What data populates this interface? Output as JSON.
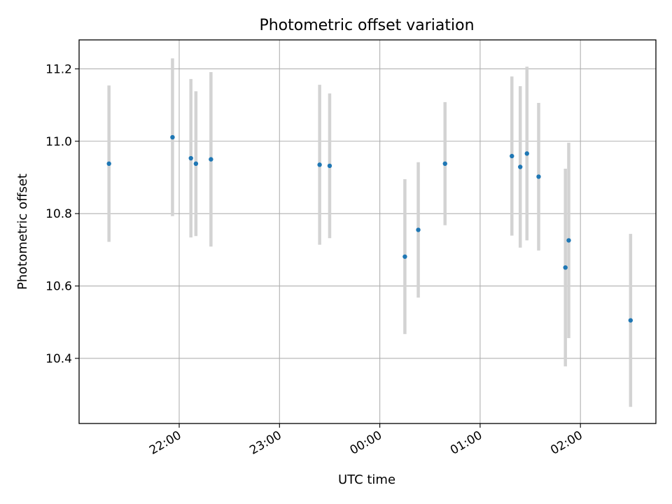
{
  "chart_data": {
    "type": "scatter",
    "title": "Photometric offset variation",
    "xlabel": "UTC time",
    "ylabel": "Photometric offset",
    "x_ticks": [
      "22:00",
      "23:00",
      "00:00",
      "01:00",
      "02:00"
    ],
    "y_ticks": [
      "10.4",
      "10.6",
      "10.8",
      "11.0",
      "11.2"
    ],
    "y_tick_values": [
      10.4,
      10.6,
      10.8,
      11.0,
      11.2
    ],
    "ylim": [
      10.22,
      11.28
    ],
    "grid": true,
    "x_unit": "UTC clock time (hh:mm, crossing midnight)",
    "points": [
      {
        "time": "21:18",
        "y": 10.938,
        "err": 0.216
      },
      {
        "time": "21:56",
        "y": 11.011,
        "err": 0.218
      },
      {
        "time": "22:07",
        "y": 10.953,
        "err": 0.219
      },
      {
        "time": "22:10",
        "y": 10.938,
        "err": 0.2
      },
      {
        "time": "22:19",
        "y": 10.95,
        "err": 0.241
      },
      {
        "time": "23:24",
        "y": 10.935,
        "err": 0.221
      },
      {
        "time": "23:30",
        "y": 10.932,
        "err": 0.2
      },
      {
        "time": "00:15",
        "y": 10.681,
        "err": 0.214
      },
      {
        "time": "00:23",
        "y": 10.755,
        "err": 0.187
      },
      {
        "time": "00:39",
        "y": 10.938,
        "err": 0.17
      },
      {
        "time": "01:19",
        "y": 10.959,
        "err": 0.22
      },
      {
        "time": "01:24",
        "y": 10.929,
        "err": 0.223
      },
      {
        "time": "01:28",
        "y": 10.966,
        "err": 0.24
      },
      {
        "time": "01:35",
        "y": 10.902,
        "err": 0.204
      },
      {
        "time": "01:51",
        "y": 10.651,
        "err": 0.273
      },
      {
        "time": "01:53",
        "y": 10.726,
        "err": 0.27
      },
      {
        "time": "02:30",
        "y": 10.505,
        "err": 0.239
      }
    ],
    "colors": {
      "point": "#1f77b4",
      "errorbar": "#d3d3d3",
      "grid": "#b0b0b0",
      "axes": "#000000"
    }
  }
}
